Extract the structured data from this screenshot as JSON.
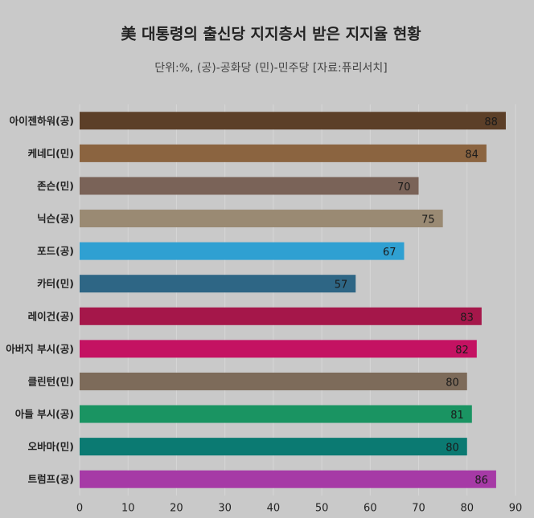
{
  "chart_data": {
    "type": "hbar",
    "title": "美 대통령의 출신당 지지층서 받은 지지율 현황",
    "subtitle": "단위:%, (공)-공화당 (민)-민주당 [자료:퓨리서치]",
    "categories": [
      "아이젠하워(공)",
      "케네디(민)",
      "존슨(민)",
      "닉슨(공)",
      "포드(공)",
      "카터(민)",
      "레이건(공)",
      "아버지 부시(공)",
      "클린턴(민)",
      "아들 부시(공)",
      "오바마(민)",
      "트럼프(공)"
    ],
    "values": [
      88,
      84,
      70,
      75,
      67,
      57,
      83,
      82,
      80,
      81,
      80,
      86
    ],
    "colors": [
      "#5c3f28",
      "#8b6440",
      "#7a6358",
      "#9a8a73",
      "#2fa0d2",
      "#2e6685",
      "#a5174a",
      "#c41262",
      "#7d6b5a",
      "#1a9462",
      "#0b7a72",
      "#a63aa6"
    ],
    "xlim": [
      0,
      90
    ],
    "xticks": [
      0,
      10,
      20,
      30,
      40,
      50,
      60,
      70,
      80,
      90
    ],
    "grid": true
  }
}
